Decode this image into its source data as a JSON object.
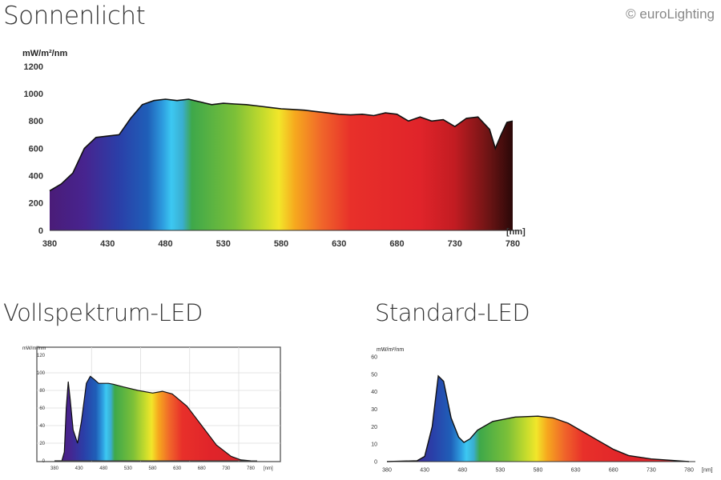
{
  "copyright": "© euroLighting",
  "chart_data": [
    {
      "type": "area",
      "title": "Sonnenlicht",
      "ylabel": "mW/m²/nm",
      "xunit": "[nm]",
      "xlim": [
        380,
        780
      ],
      "ylim": [
        0,
        1200
      ],
      "xticks": [
        380,
        430,
        480,
        530,
        580,
        630,
        680,
        730,
        780
      ],
      "yticks": [
        0,
        200,
        400,
        600,
        800,
        1000,
        1200
      ],
      "grid": false,
      "fill": "spectral rainbow gradient",
      "x": [
        380,
        390,
        400,
        410,
        420,
        430,
        440,
        450,
        460,
        470,
        480,
        490,
        500,
        510,
        520,
        530,
        540,
        550,
        560,
        570,
        580,
        590,
        600,
        610,
        620,
        630,
        640,
        650,
        660,
        670,
        680,
        690,
        700,
        710,
        720,
        730,
        740,
        750,
        760,
        765,
        770,
        775,
        780
      ],
      "y": [
        290,
        340,
        420,
        600,
        680,
        690,
        700,
        820,
        920,
        950,
        960,
        950,
        960,
        940,
        920,
        930,
        925,
        920,
        910,
        900,
        890,
        885,
        880,
        870,
        860,
        850,
        845,
        850,
        840,
        860,
        850,
        800,
        830,
        800,
        810,
        760,
        820,
        830,
        740,
        600,
        700,
        790,
        800
      ]
    },
    {
      "type": "area",
      "title": "Vollspektrum-LED",
      "ylabel": "mW/m²/nm",
      "xunit": "[nm]",
      "xlim": [
        380,
        780
      ],
      "ylim": [
        0,
        120
      ],
      "xticks": [
        380,
        430,
        480,
        530,
        580,
        630,
        680,
        730,
        780
      ],
      "yticks": [
        0,
        20,
        40,
        60,
        80,
        100,
        120
      ],
      "grid": true,
      "fill": "spectral rainbow gradient",
      "x": [
        380,
        395,
        400,
        404,
        408,
        412,
        418,
        427,
        435,
        445,
        453,
        460,
        470,
        490,
        500,
        520,
        550,
        580,
        600,
        620,
        650,
        680,
        710,
        740,
        760,
        780
      ],
      "y": [
        0,
        0,
        10,
        60,
        90,
        70,
        35,
        20,
        45,
        88,
        96,
        93,
        88,
        88,
        87,
        84,
        80,
        77,
        79,
        76,
        62,
        40,
        18,
        5,
        1,
        0
      ]
    },
    {
      "type": "area",
      "title": "Standard-LED",
      "ylabel": "mW/m²/nm",
      "xunit": "[nm]",
      "xlim": [
        380,
        780
      ],
      "ylim": [
        0,
        60
      ],
      "xticks": [
        380,
        430,
        480,
        530,
        580,
        630,
        680,
        730,
        780
      ],
      "yticks": [
        0,
        10,
        20,
        30,
        40,
        50,
        60
      ],
      "grid": false,
      "fill": "spectral rainbow gradient",
      "x": [
        380,
        420,
        430,
        440,
        448,
        455,
        465,
        475,
        482,
        490,
        500,
        520,
        550,
        580,
        600,
        620,
        640,
        660,
        680,
        700,
        730,
        780
      ],
      "y": [
        0,
        0.5,
        3,
        20,
        49,
        46,
        25,
        14,
        11,
        13,
        18,
        23,
        25.5,
        26,
        25,
        22,
        17,
        12,
        7,
        3.5,
        1.5,
        0
      ]
    }
  ]
}
